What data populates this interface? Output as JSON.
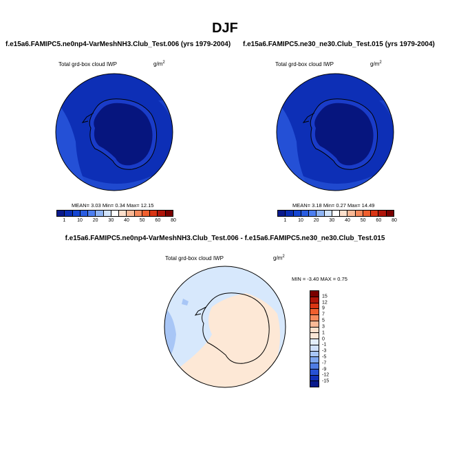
{
  "figure": {
    "season": "DJF"
  },
  "panels": [
    {
      "title": "f.e15a6.FAMIPC5.ne0np4-VarMeshNH3.Club_Test.006 (yrs 1979-2004)",
      "variable": "Total grd-box cloud IWP",
      "units": "g/m",
      "units_exp": "2",
      "stats": "MEAN=   3.03  Min=   0.34  Max=  12.15",
      "colorbar": {
        "colors": [
          "#0a1a8c",
          "#0b2fb4",
          "#1546d2",
          "#2a5de0",
          "#4d7ff0",
          "#8fb4f4",
          "#d2e4fb",
          "#ffffff",
          "#fde0cc",
          "#fbb996",
          "#f78a5c",
          "#f05f2e",
          "#d93514",
          "#b0150a",
          "#7a0000"
        ],
        "labels": [
          "1",
          "10",
          "20",
          "30",
          "40",
          "50",
          "60",
          "80"
        ]
      }
    },
    {
      "title": "f.e15a6.FAMIPC5.ne30_ne30.Club_Test.015 (yrs 1979-2004)",
      "variable": "Total grd-box cloud IWP",
      "units": "g/m",
      "units_exp": "2",
      "stats": "MEAN=   3.18  Min=   0.27  Max=  14.49",
      "colorbar": {
        "colors": [
          "#0a1a8c",
          "#0b2fb4",
          "#1546d2",
          "#2a5de0",
          "#4d7ff0",
          "#8fb4f4",
          "#d2e4fb",
          "#ffffff",
          "#fde0cc",
          "#fbb996",
          "#f78a5c",
          "#f05f2e",
          "#d93514",
          "#b0150a",
          "#7a0000"
        ],
        "labels": [
          "1",
          "10",
          "20",
          "30",
          "40",
          "50",
          "60",
          "80"
        ]
      }
    }
  ],
  "diff": {
    "title": "f.e15a6.FAMIPC5.ne0np4-VarMeshNH3.Club_Test.006 - f.e15a6.FAMIPC5.ne30_ne30.Club_Test.015",
    "variable": "Total grd-box cloud IWP",
    "units": "g/m",
    "units_exp": "2",
    "stats": "MIN =  -3.40 MAX =   0.75",
    "colorbar": {
      "colors": [
        "#7a0000",
        "#b0150a",
        "#d93514",
        "#f05f2e",
        "#f78a5c",
        "#fbb996",
        "#fde0cc",
        "#fbe6d6",
        "#e3eefc",
        "#cfe0fb",
        "#a8c6f6",
        "#7ea6ef",
        "#4f7ce4",
        "#2851d4",
        "#1230b8",
        "#0a1a8c"
      ],
      "labels": [
        "15",
        "12",
        "9",
        "7",
        "5",
        "3",
        "1",
        "0",
        "-1",
        "-3",
        "-5",
        "-7",
        "-9",
        "-12",
        "-15"
      ]
    }
  },
  "colors": {
    "ocean_deep": "#0d2fb6",
    "ocean_mid": "#2450d6",
    "continent": "#06157e",
    "continent_edge": "#1a3cc8",
    "diff_ocean": "#d7e8fc",
    "diff_land": "#fde8d6",
    "diff_blue_patch": "#a8c6f6"
  }
}
